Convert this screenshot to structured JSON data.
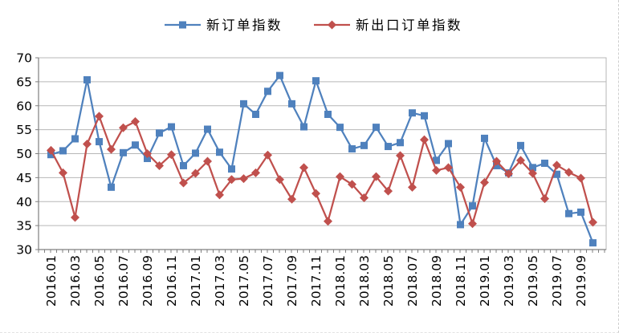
{
  "chart_data": {
    "type": "line",
    "title": "",
    "x": [
      "2016.01",
      "2016.02",
      "2016.03",
      "2016.04",
      "2016.05",
      "2016.06",
      "2016.07",
      "2016.08",
      "2016.09",
      "2016.10",
      "2016.11",
      "2016.12",
      "2017.01",
      "2017.02",
      "2017.03",
      "2017.04",
      "2017.05",
      "2017.06",
      "2017.07",
      "2017.08",
      "2017.09",
      "2017.10",
      "2017.11",
      "2017.12",
      "2018.01",
      "2018.02",
      "2018.03",
      "2018.04",
      "2018.05",
      "2018.06",
      "2018.07",
      "2018.08",
      "2018.09",
      "2018.10",
      "2018.11",
      "2018.12",
      "2019.01",
      "2019.02",
      "2019.03",
      "2019.04",
      "2019.05",
      "2019.06",
      "2019.07",
      "2019.08",
      "2019.09",
      "2019.10"
    ],
    "x_tick_labels": [
      "2016.01",
      "2016.03",
      "2016.05",
      "2016.07",
      "2016.09",
      "2016.11",
      "2017.01",
      "2017.03",
      "2017.05",
      "2017.07",
      "2017.09",
      "2017.11",
      "2018.01",
      "2018.03",
      "2018.05",
      "2018.07",
      "2018.09",
      "2018.11",
      "2019.01",
      "2019.03",
      "2019.05",
      "2019.07",
      "2019.09"
    ],
    "x_tick_step": 2,
    "ylim": [
      30,
      70
    ],
    "y_tick_interval": 5,
    "y_tick_labels": [
      "30",
      "35",
      "40",
      "45",
      "50",
      "55",
      "60",
      "65",
      "70"
    ],
    "grid": true,
    "legend_position": "top",
    "series": [
      {
        "name": "新订单指数",
        "key": "new-orders-index",
        "marker": "square",
        "color": "#4f81bd",
        "values": [
          49.8,
          50.6,
          53.1,
          65.4,
          52.5,
          43.0,
          50.2,
          51.8,
          49.0,
          54.3,
          55.6,
          47.5,
          50.1,
          55.1,
          50.3,
          46.8,
          60.4,
          58.2,
          63.0,
          66.3,
          60.4,
          55.6,
          65.2,
          58.2,
          55.5,
          51.0,
          51.7,
          55.5,
          51.5,
          52.3,
          58.5,
          57.9,
          48.6,
          52.1,
          35.2,
          39.1,
          53.2,
          47.5,
          46.0,
          51.7,
          47.1,
          48.0,
          45.7,
          37.5,
          37.8,
          31.4
        ]
      },
      {
        "name": "新出口订单指数",
        "key": "new-export-orders-index",
        "marker": "diamond",
        "color": "#c0504d",
        "values": [
          50.7,
          46.0,
          36.7,
          52.0,
          57.8,
          50.9,
          55.4,
          56.7,
          50.0,
          47.5,
          49.8,
          43.9,
          45.9,
          48.4,
          41.4,
          44.6,
          44.8,
          46.0,
          49.7,
          44.6,
          40.5,
          47.1,
          41.7,
          35.9,
          45.2,
          43.6,
          40.8,
          45.2,
          42.2,
          49.6,
          43.0,
          52.9,
          46.5,
          47.1,
          43.0,
          35.4,
          44.0,
          48.4,
          45.8,
          48.6,
          45.9,
          40.6,
          47.6,
          46.1,
          44.9,
          35.7
        ]
      }
    ]
  },
  "colors": {
    "background": "#ffffff",
    "grid": "#b7b7b7",
    "axis": "#7f7f7f",
    "text": "#000000"
  }
}
